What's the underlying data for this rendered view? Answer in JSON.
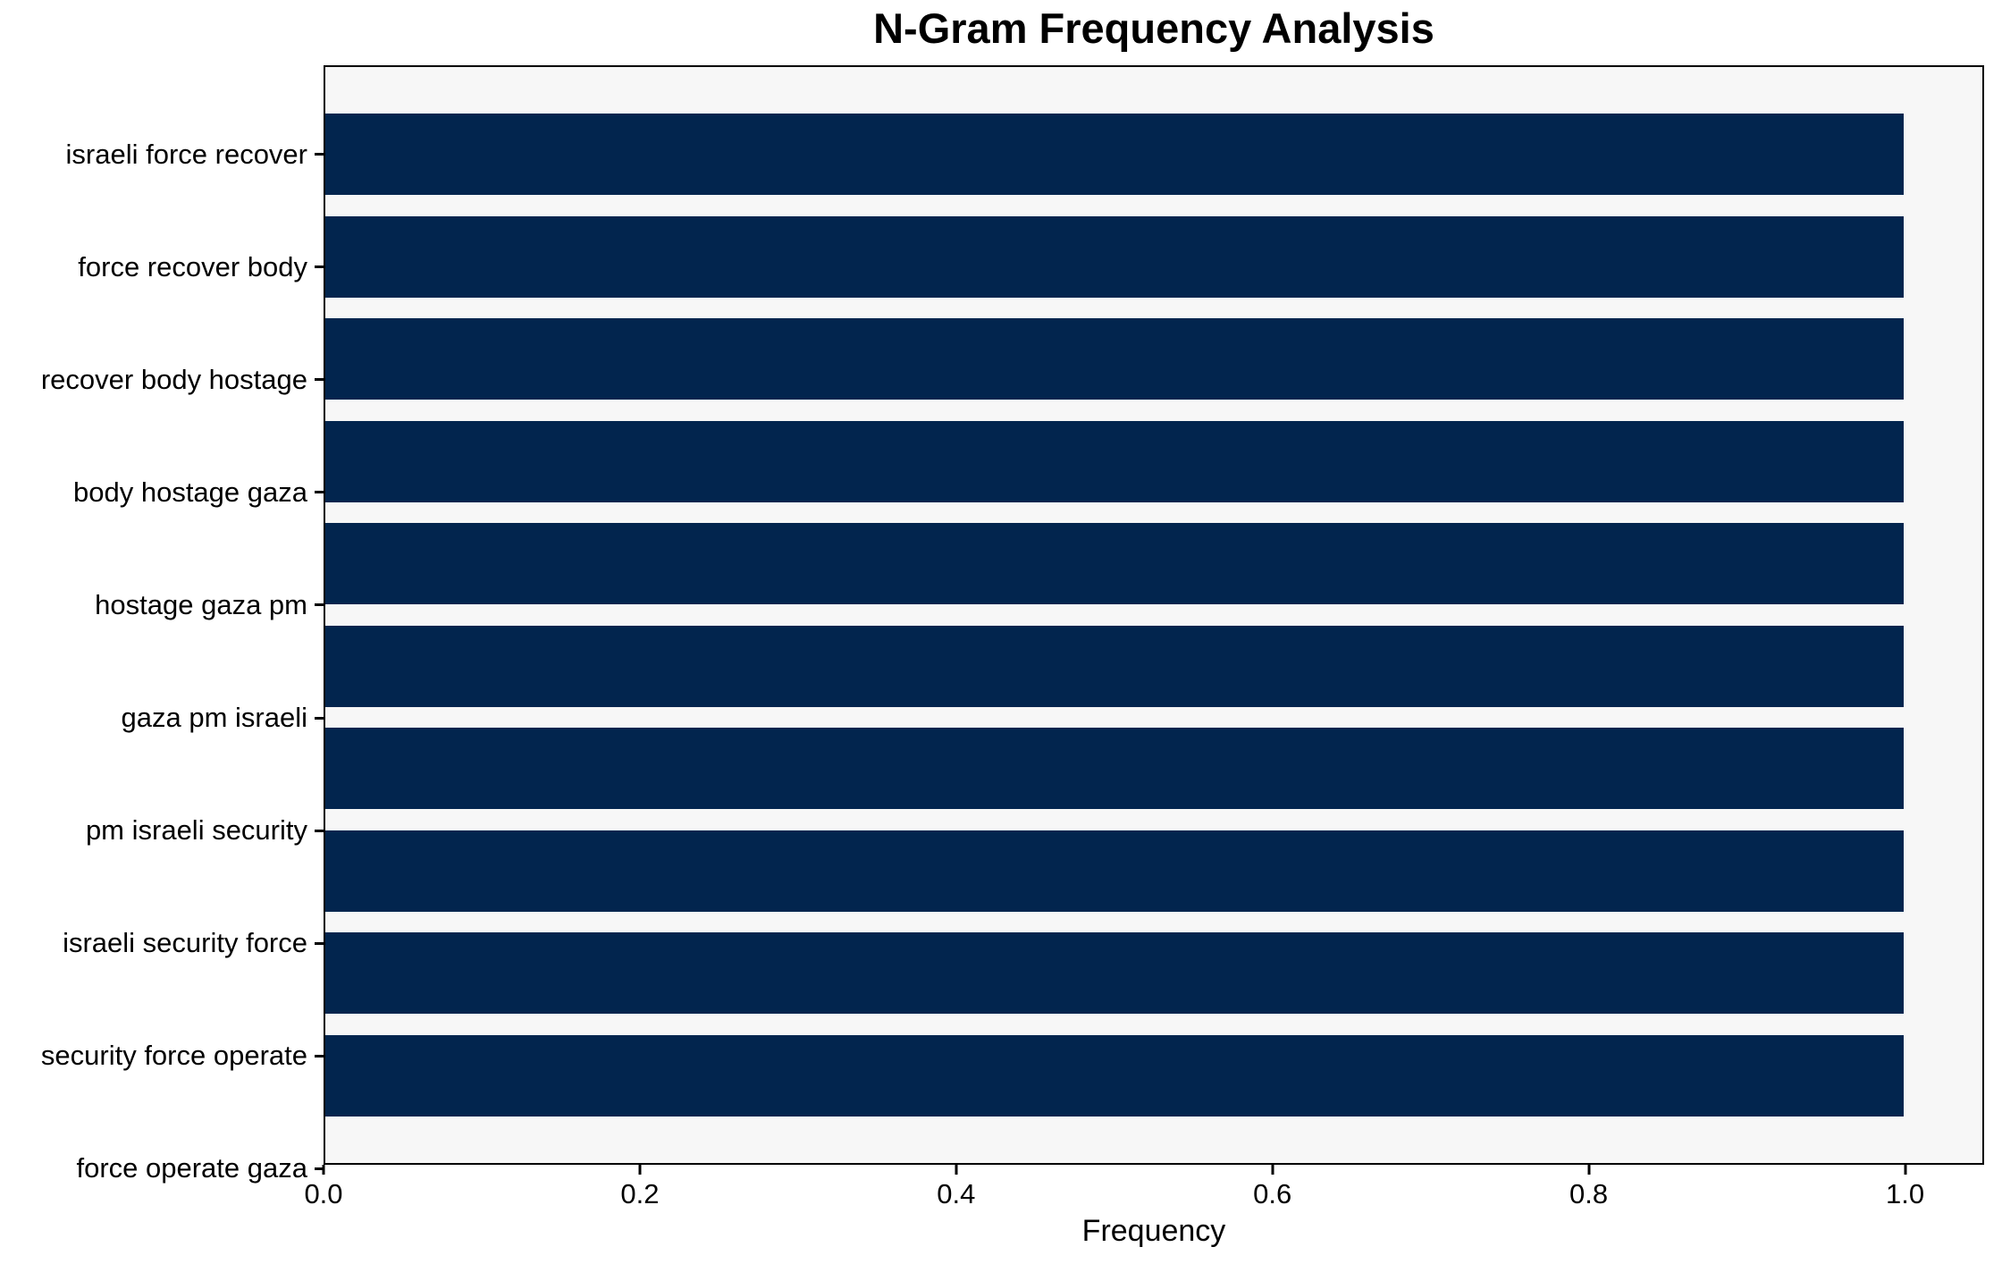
{
  "chart_data": {
    "type": "bar",
    "orientation": "horizontal",
    "title": "N-Gram Frequency Analysis",
    "xlabel": "Frequency",
    "ylabel": "",
    "categories": [
      "israeli force recover",
      "force recover body",
      "recover body hostage",
      "body hostage gaza",
      "hostage gaza pm",
      "gaza pm israeli",
      "pm israeli security",
      "israeli security force",
      "security force operate",
      "force operate gaza"
    ],
    "values": [
      1.0,
      1.0,
      1.0,
      1.0,
      1.0,
      1.0,
      1.0,
      1.0,
      1.0,
      1.0
    ],
    "xlim": [
      0,
      1.05
    ],
    "xticks": [
      0.0,
      0.2,
      0.4,
      0.6,
      0.8,
      1.0
    ],
    "xtick_labels": [
      "0.0",
      "0.2",
      "0.4",
      "0.6",
      "0.8",
      "1.0"
    ],
    "grid": false,
    "legend": false,
    "colors": {
      "bar": "#02254e",
      "plot_background": "#f7f7f7",
      "figure_background": "#ffffff",
      "axis": "#000000",
      "text": "#000000"
    }
  }
}
